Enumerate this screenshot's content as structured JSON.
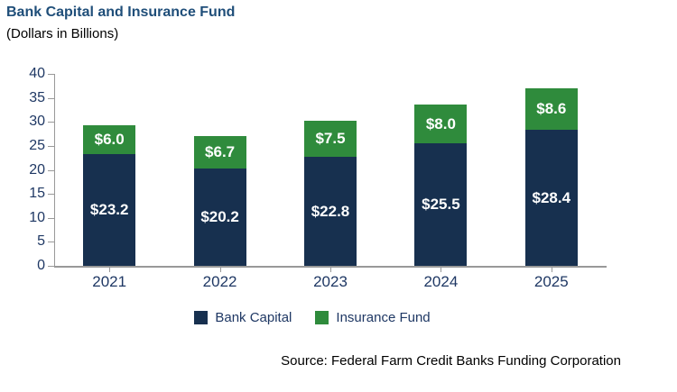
{
  "header": {
    "title": "Bank Capital and Insurance Fund",
    "subtitle": "(Dollars in Billions)"
  },
  "chart_data": {
    "type": "bar",
    "stacked": true,
    "title": "Bank Capital and Insurance Fund",
    "subtitle": "(Dollars in Billions)",
    "categories": [
      "2021",
      "2022",
      "2023",
      "2024",
      "2025"
    ],
    "series": [
      {
        "name": "Bank Capital",
        "color": "#17304F",
        "values": [
          23.2,
          20.2,
          22.8,
          25.5,
          28.4
        ],
        "labels": [
          "$23.2",
          "$20.2",
          "$22.8",
          "$25.5",
          "$28.4"
        ]
      },
      {
        "name": "Insurance Fund",
        "color": "#2F8B3C",
        "values": [
          6.0,
          6.7,
          7.5,
          8.0,
          8.6
        ],
        "labels": [
          "$6.0",
          "$6.7",
          "$7.5",
          "$8.0",
          "$8.6"
        ]
      }
    ],
    "y_axis": {
      "min": 0,
      "max": 40,
      "step": 5,
      "tick_labels": [
        "0",
        "5",
        "10",
        "15",
        "20",
        "25",
        "30",
        "35",
        "40"
      ]
    },
    "grid": false,
    "legend_position": "bottom"
  },
  "source": "Source: Federal Farm Credit Banks Funding Corporation",
  "colors": {
    "title": "#1F4E79",
    "axis_text": "#1F3864",
    "axis_line": "#999999",
    "bar_label": "#FFFFFF",
    "text": "#000000",
    "background": "#FFFFFF"
  }
}
